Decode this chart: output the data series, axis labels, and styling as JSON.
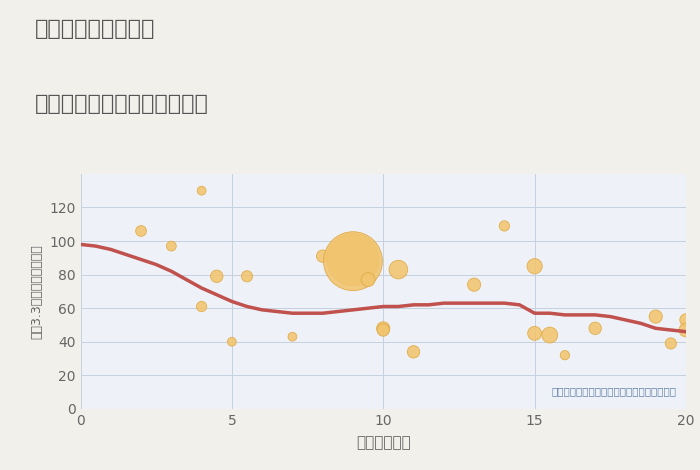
{
  "title_line1": "岐阜県本巣市温井の",
  "title_line2": "駅距離別中古マンション価格",
  "xlabel": "駅距離（分）",
  "ylabel": "坪（3.3㎡）単価（万円）",
  "annotation": "円の大きさは、取引のあった物件面積を示す",
  "background_color": "#f2f0eb",
  "plot_background": "#eef2f8",
  "grid_color": "#c5d0e0",
  "scatter_color": "#f2c46e",
  "scatter_edge_color": "#dea840",
  "line_color": "#c0514d",
  "title_color": "#555555",
  "tick_color": "#666666",
  "annotation_color": "#6080a8",
  "xlim": [
    0,
    20
  ],
  "ylim": [
    0,
    140
  ],
  "xticks": [
    0,
    5,
    10,
    15,
    20
  ],
  "yticks": [
    0,
    20,
    40,
    60,
    80,
    100,
    120
  ],
  "scatter_x": [
    2,
    3,
    4,
    4,
    4.5,
    5,
    5.5,
    7,
    8,
    9,
    9,
    9.5,
    10,
    10,
    10.5,
    11,
    13,
    14,
    15,
    15,
    15.5,
    16,
    17,
    19,
    19.5,
    20,
    20
  ],
  "scatter_y": [
    106,
    97,
    130,
    61,
    79,
    40,
    79,
    43,
    91,
    89,
    88,
    77,
    48,
    47,
    83,
    34,
    74,
    109,
    85,
    45,
    44,
    32,
    48,
    55,
    39,
    53,
    47
  ],
  "scatter_size": [
    60,
    50,
    40,
    55,
    80,
    40,
    65,
    40,
    80,
    1400,
    1800,
    100,
    90,
    80,
    180,
    80,
    90,
    55,
    120,
    100,
    130,
    45,
    80,
    90,
    65,
    80,
    100
  ],
  "line_x": [
    0,
    0.5,
    1,
    1.5,
    2,
    2.5,
    3,
    3.5,
    4,
    4.5,
    5,
    5.5,
    6,
    6.5,
    7,
    7.5,
    8,
    8.5,
    9,
    9.5,
    10,
    10.5,
    11,
    11.5,
    12,
    12.5,
    13,
    13.5,
    14,
    14.5,
    15,
    15.5,
    16,
    16.5,
    17,
    17.5,
    18,
    18.5,
    19,
    19.5,
    20
  ],
  "line_y": [
    98,
    97,
    95,
    92,
    89,
    86,
    82,
    77,
    72,
    68,
    64,
    61,
    59,
    58,
    57,
    57,
    57,
    58,
    59,
    60,
    61,
    61,
    62,
    62,
    63,
    63,
    63,
    63,
    63,
    62,
    57,
    57,
    56,
    56,
    56,
    55,
    53,
    51,
    48,
    47,
    46
  ]
}
